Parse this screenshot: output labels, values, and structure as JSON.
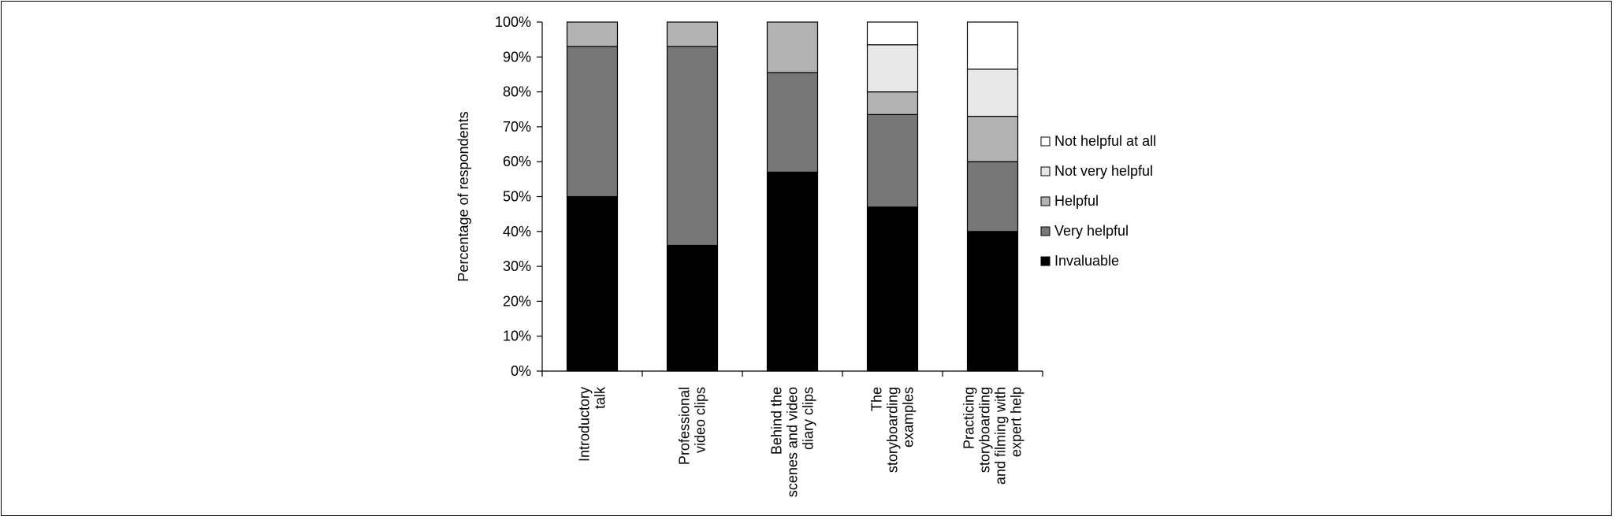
{
  "chart_data": {
    "type": "bar",
    "stacked": true,
    "title": "",
    "xlabel": "",
    "ylabel": "Percentage of respondents",
    "ylim": [
      0,
      100
    ],
    "y_ticks": [
      "0%",
      "10%",
      "20%",
      "30%",
      "40%",
      "50%",
      "60%",
      "70%",
      "80%",
      "90%",
      "100%"
    ],
    "categories": [
      [
        "Introductory",
        "talk"
      ],
      [
        "Professional",
        "video clips"
      ],
      [
        "Behind the",
        "scenes and video",
        "diary clips"
      ],
      [
        "The",
        "storyboarding",
        "examples"
      ],
      [
        "Practicing",
        "storyboarding",
        "and filming with",
        "expert help"
      ]
    ],
    "series": [
      {
        "name": "Invaluable",
        "color": "#000000",
        "values": [
          50,
          36,
          57,
          47,
          40
        ]
      },
      {
        "name": "Very helpful",
        "color": "#777777",
        "values": [
          43,
          57,
          28.5,
          26.5,
          20
        ]
      },
      {
        "name": "Helpful",
        "color": "#b3b3b3",
        "values": [
          7,
          7,
          14.5,
          6.5,
          13
        ]
      },
      {
        "name": "Not very helpful",
        "color": "#e8e8e8",
        "values": [
          0,
          0,
          0,
          13.5,
          13.5
        ]
      },
      {
        "name": "Not helpful  at all",
        "color": "#ffffff",
        "values": [
          0,
          0,
          0,
          6.5,
          13.5
        ]
      }
    ],
    "legend": {
      "position": "right",
      "order": [
        "Not helpful  at all",
        "Not very helpful",
        "Helpful",
        "Very helpful",
        "Invaluable"
      ]
    },
    "grid": false
  }
}
